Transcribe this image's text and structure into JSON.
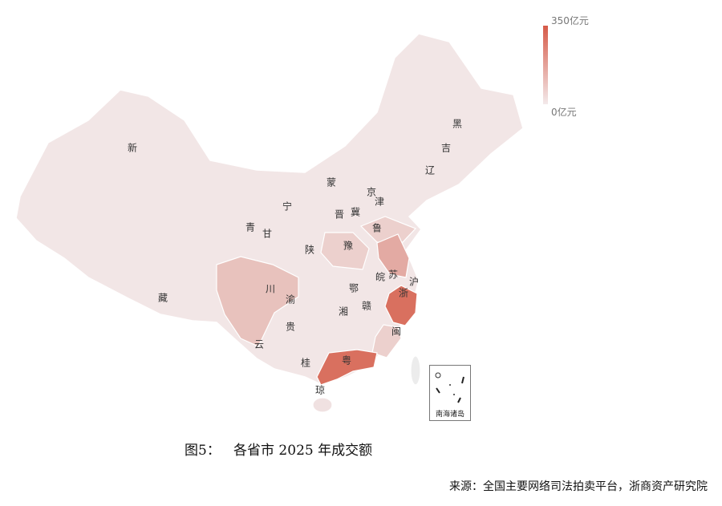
{
  "legend": {
    "max_label": "350亿元",
    "min_label": "0亿元",
    "color_max": "#d65a48",
    "color_min": "#f3e9ea"
  },
  "provinces": [
    {
      "label": "新",
      "level": 0.02
    },
    {
      "label": "藏",
      "level": 0.01
    },
    {
      "label": "青",
      "level": 0.02
    },
    {
      "label": "甘",
      "level": 0.04
    },
    {
      "label": "宁",
      "level": 0.02
    },
    {
      "label": "蒙",
      "level": 0.05
    },
    {
      "label": "黑",
      "level": 0.05
    },
    {
      "label": "吉",
      "level": 0.05
    },
    {
      "label": "辽",
      "level": 0.06
    },
    {
      "label": "京",
      "level": 0.08
    },
    {
      "label": "津",
      "level": 0.06
    },
    {
      "label": "冀",
      "level": 0.08
    },
    {
      "label": "晋",
      "level": 0.06
    },
    {
      "label": "鲁",
      "level": 0.18
    },
    {
      "label": "豫",
      "level": 0.18
    },
    {
      "label": "陕",
      "level": 0.06
    },
    {
      "label": "川",
      "level": 0.3
    },
    {
      "label": "渝",
      "level": 0.1
    },
    {
      "label": "贵",
      "level": 0.06
    },
    {
      "label": "云",
      "level": 0.08
    },
    {
      "label": "桂",
      "level": 0.08
    },
    {
      "label": "湘",
      "level": 0.1
    },
    {
      "label": "鄂",
      "level": 0.1
    },
    {
      "label": "赣",
      "level": 0.08
    },
    {
      "label": "皖",
      "level": 0.12
    },
    {
      "label": "苏",
      "level": 0.38
    },
    {
      "label": "沪",
      "level": 0.1
    },
    {
      "label": "浙",
      "level": 0.85
    },
    {
      "label": "闽",
      "level": 0.18
    },
    {
      "label": "粤",
      "level": 0.85
    },
    {
      "label": "琼",
      "level": 0.05
    }
  ],
  "inset_label": "南海诸岛",
  "caption": "图5：   各省市 2025 年成交额",
  "source": "来源：全国主要网络司法拍卖平台，浙商资产研究院"
}
